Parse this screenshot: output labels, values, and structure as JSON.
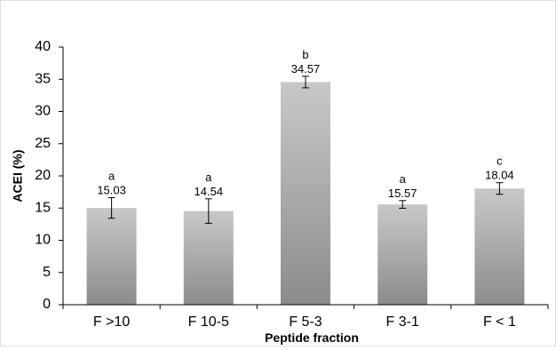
{
  "chart_data": {
    "type": "bar",
    "title": "",
    "xlabel": "Peptide fraction",
    "ylabel": "ACEI (%)",
    "ylim": [
      0,
      40
    ],
    "yticks": [
      0,
      5,
      10,
      15,
      20,
      25,
      30,
      35,
      40
    ],
    "categories": [
      "F >10",
      "F 10-5",
      "F 5-3",
      "F 3-1",
      "F < 1"
    ],
    "values": [
      15.03,
      14.54,
      34.57,
      15.57,
      18.04
    ],
    "value_labels": [
      "15.03",
      "14.54",
      "34.57",
      "15.57",
      "18.04"
    ],
    "errors": [
      1.6,
      1.9,
      0.9,
      0.6,
      0.9
    ],
    "letters": [
      "a",
      "a",
      "b",
      "a",
      "c"
    ],
    "grid": false,
    "legend": "none",
    "colors": {
      "bar_top": "#c8c8c8",
      "bar_bottom": "#8c8c8c",
      "axis": "#000000"
    }
  }
}
